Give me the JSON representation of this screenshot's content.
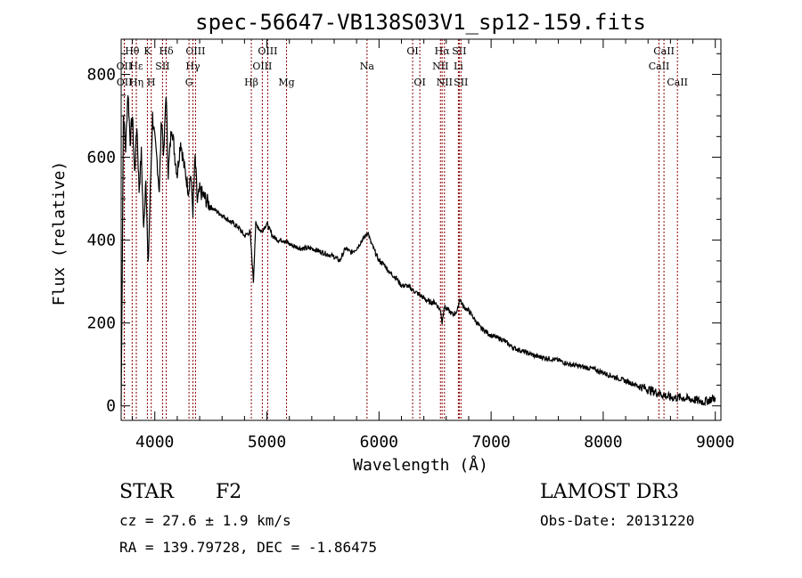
{
  "chart_data": {
    "type": "line",
    "title": "spec-56647-VB138S03V1_sp12-159.fits",
    "xlabel": "Wavelength (Å)",
    "ylabel": "Flux (relative)",
    "xlim": [
      3700,
      9050
    ],
    "ylim": [
      -35,
      885
    ],
    "xticks": [
      4000,
      5000,
      6000,
      7000,
      8000,
      9000
    ],
    "yticks": [
      0,
      200,
      400,
      600,
      800
    ],
    "grid": false,
    "line_color": "#000000",
    "marker_color": "#8b0000",
    "series": [
      {
        "x": [
          3700,
          3720,
          3740,
          3760,
          3780,
          3800,
          3820,
          3840,
          3860,
          3880,
          3900,
          3920,
          3940,
          3960,
          3980,
          4000,
          4020,
          4040,
          4060,
          4080,
          4100,
          4120,
          4150,
          4180,
          4200,
          4230,
          4260,
          4300,
          4320,
          4340,
          4360,
          4380,
          4400,
          4450,
          4500,
          4550,
          4600,
          4650,
          4700,
          4750,
          4800,
          4850,
          4880,
          4900,
          4950,
          5000,
          5050,
          5100,
          5150,
          5200,
          5300,
          5400,
          5500,
          5600,
          5650,
          5700,
          5750,
          5800,
          5850,
          5880,
          5900,
          5920,
          5950,
          6000,
          6050,
          6100,
          6150,
          6200,
          6250,
          6300,
          6350,
          6400,
          6450,
          6500,
          6550,
          6563,
          6580,
          6620,
          6660,
          6700,
          6720,
          6750,
          6800,
          6850,
          6900,
          6950,
          7000,
          7100,
          7200,
          7300,
          7400,
          7500,
          7600,
          7700,
          7800,
          7900,
          8000,
          8100,
          8200,
          8300,
          8400,
          8500,
          8600,
          8700,
          8800,
          8900,
          9000
        ],
        "y": [
          0,
          700,
          620,
          760,
          640,
          700,
          560,
          680,
          520,
          610,
          420,
          560,
          330,
          520,
          700,
          640,
          590,
          520,
          700,
          600,
          760,
          560,
          680,
          600,
          560,
          640,
          580,
          520,
          560,
          470,
          600,
          490,
          520,
          500,
          480,
          470,
          460,
          450,
          440,
          430,
          410,
          420,
          300,
          440,
          420,
          440,
          410,
          400,
          400,
          390,
          380,
          380,
          370,
          360,
          350,
          380,
          370,
          380,
          400,
          410,
          420,
          400,
          380,
          350,
          340,
          320,
          310,
          290,
          290,
          280,
          270,
          260,
          250,
          250,
          230,
          200,
          240,
          230,
          220,
          230,
          260,
          240,
          230,
          210,
          190,
          180,
          170,
          160,
          140,
          130,
          120,
          115,
          110,
          100,
          95,
          90,
          80,
          70,
          60,
          50,
          40,
          30,
          20,
          20,
          15,
          10,
          20
        ]
      }
    ],
    "line_markers": [
      {
        "label": "Hθ",
        "wl": 3798,
        "row": 1
      },
      {
        "label": "OII",
        "wl": 3727,
        "row": 2
      },
      {
        "label": "OII",
        "wl": 3729,
        "row": 3
      },
      {
        "label": "Hε",
        "wl": 3835,
        "row": 2
      },
      {
        "label": "Hη",
        "wl": 3835,
        "row": 3
      },
      {
        "label": "K",
        "wl": 3934,
        "row": 1
      },
      {
        "label": "SII",
        "wl": 4069,
        "row": 2
      },
      {
        "label": "H",
        "wl": 3968,
        "row": 3
      },
      {
        "label": "Hδ",
        "wl": 4102,
        "row": 1
      },
      {
        "label": "OIII",
        "wl": 4363,
        "row": 1
      },
      {
        "label": "Hγ",
        "wl": 4340,
        "row": 2
      },
      {
        "label": "G",
        "wl": 4305,
        "row": 3
      },
      {
        "label": "Hβ",
        "wl": 4861,
        "row": 3
      },
      {
        "label": "OIII",
        "wl": 5007,
        "row": 1
      },
      {
        "label": "OIII",
        "wl": 4959,
        "row": 2
      },
      {
        "label": "Mg",
        "wl": 5175,
        "row": 3
      },
      {
        "label": "Na",
        "wl": 5893,
        "row": 2
      },
      {
        "label": "OI",
        "wl": 6300,
        "row": 1
      },
      {
        "label": "OI",
        "wl": 6364,
        "row": 3
      },
      {
        "label": "Hα",
        "wl": 6563,
        "row": 1
      },
      {
        "label": "SII",
        "wl": 6716,
        "row": 1
      },
      {
        "label": "NII",
        "wl": 6548,
        "row": 2
      },
      {
        "label": "Li",
        "wl": 6708,
        "row": 2
      },
      {
        "label": "NII",
        "wl": 6584,
        "row": 3
      },
      {
        "label": "SII",
        "wl": 6731,
        "row": 3
      },
      {
        "label": "CaII",
        "wl": 8542,
        "row": 1
      },
      {
        "label": "CaII",
        "wl": 8498,
        "row": 2
      },
      {
        "label": "CaII",
        "wl": 8662,
        "row": 3
      }
    ]
  },
  "info": {
    "object_class": "STAR",
    "subclass": "F2",
    "survey": "LAMOST DR3",
    "cz": "cz = 27.6 ± 1.9 km/s",
    "obs_date": "Obs-Date: 20131220",
    "coords": "RA = 139.79728, DEC =  -1.86475"
  }
}
